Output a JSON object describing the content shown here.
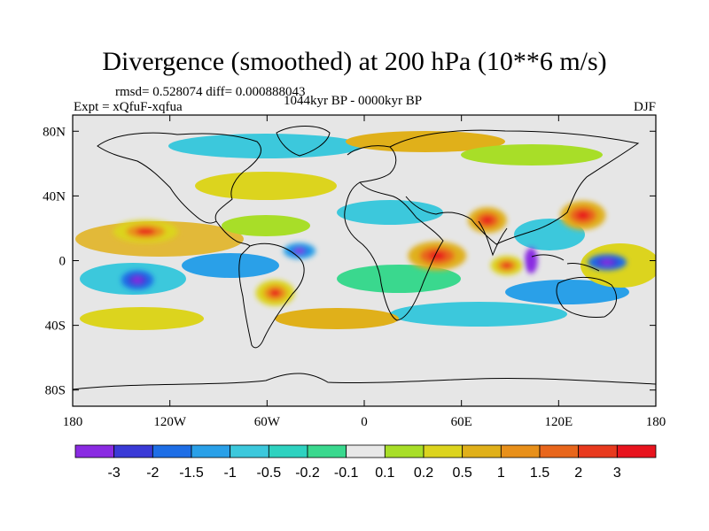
{
  "title": "Divergence (smoothed) at 200 hPa (10**6 m/s)",
  "stats_line": "rmsd= 0.528074 diff= 0.000888043",
  "experiment": "Expt = xQfuF-xqfua",
  "period": "1044kyr BP - 0000kyr BP",
  "season": "DJF",
  "map": {
    "projection": "cylindrical-equidistant",
    "lon_range": [
      -180,
      180
    ],
    "lat_range": [
      -90,
      90
    ],
    "background_color": "#e6e6e6",
    "coastline_color": "#000000",
    "x_ticks": [
      {
        "value": -180,
        "label": "180"
      },
      {
        "value": -120,
        "label": "120W"
      },
      {
        "value": -60,
        "label": "60W"
      },
      {
        "value": 0,
        "label": "0"
      },
      {
        "value": 60,
        "label": "60E"
      },
      {
        "value": 120,
        "label": "120E"
      },
      {
        "value": 180,
        "label": "180"
      }
    ],
    "y_ticks": [
      {
        "value": 80,
        "label": "80N"
      },
      {
        "value": 40,
        "label": "40N"
      },
      {
        "value": 0,
        "label": "0"
      },
      {
        "value": -40,
        "label": "40S"
      },
      {
        "value": -80,
        "label": "80S"
      }
    ],
    "features": [
      {
        "name": "asia-east-positive",
        "lon": 135,
        "lat": 28,
        "rx": 14,
        "ry": 9,
        "level": 10
      },
      {
        "name": "arabia-positive",
        "lon": 76,
        "lat": 25,
        "rx": 12,
        "ry": 8,
        "level": 10
      },
      {
        "name": "africa-positive",
        "lon": 45,
        "lat": 3,
        "rx": 18,
        "ry": 9,
        "level": 10
      },
      {
        "name": "indonesia-negative",
        "lon": 103,
        "lat": 0,
        "rx": 4,
        "ry": 8,
        "level": 0
      },
      {
        "name": "pacific-south-negative",
        "lon": -140,
        "lat": -12,
        "rx": 10,
        "ry": 6,
        "level": 2
      },
      {
        "name": "west-pacific-negative",
        "lon": 150,
        "lat": -1,
        "rx": 12,
        "ry": 5,
        "level": 2
      },
      {
        "name": "indian-ocean-south-positive",
        "lon": 88,
        "lat": -3,
        "rx": 10,
        "ry": 6,
        "level": 9
      },
      {
        "name": "atlantic-negative",
        "lon": -40,
        "lat": 6,
        "rx": 10,
        "ry": 5,
        "level": 3
      },
      {
        "name": "pacific-north-positive",
        "lon": -135,
        "lat": 18,
        "rx": 20,
        "ry": 7,
        "level": 9
      },
      {
        "name": "south-america-positive",
        "lon": -55,
        "lat": -20,
        "rx": 12,
        "ry": 8,
        "level": 9
      }
    ]
  },
  "colorbar": {
    "colors": [
      "#8a2be2",
      "#3a3ad6",
      "#1e6ee6",
      "#2aa0e8",
      "#3cc8dc",
      "#2ed2c0",
      "#3ad88e",
      "#e8e8e8",
      "#a8de28",
      "#dcd41e",
      "#e0b01a",
      "#e8901a",
      "#e8661c",
      "#e83a1e",
      "#e8141e"
    ],
    "labels": [
      "-3",
      "-2",
      "-1.5",
      "-1",
      "-0.5",
      "-0.2",
      "-0.1",
      "0.1",
      "0.2",
      "0.5",
      "1",
      "1.5",
      "2",
      "3"
    ]
  }
}
